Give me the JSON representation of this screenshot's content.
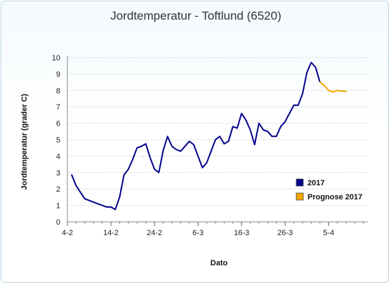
{
  "chart_data": {
    "type": "line",
    "title": "Jordtemperatur - Toftlund (6520)",
    "xlabel": "Dato",
    "ylabel": "Jordtemperatur (grader C)",
    "ylim": [
      0,
      10
    ],
    "yticks": [
      0,
      1,
      2,
      3,
      4,
      5,
      6,
      7,
      8,
      9,
      10
    ],
    "xlim": [
      "2017-02-04",
      "2017-04-14"
    ],
    "xtick_labels": [
      {
        "date": "2017-02-04",
        "label": "4-2"
      },
      {
        "date": "2017-02-14",
        "label": "14-2"
      },
      {
        "date": "2017-02-24",
        "label": "24-2"
      },
      {
        "date": "2017-03-06",
        "label": "6-3"
      },
      {
        "date": "2017-03-16",
        "label": "16-3"
      },
      {
        "date": "2017-03-26",
        "label": "26-3"
      },
      {
        "date": "2017-04-05",
        "label": "5-4"
      }
    ],
    "grid": "horizontal dotted",
    "legend_position": "right",
    "series": [
      {
        "name": "2017",
        "color": "#00008b",
        "x": [
          "2017-02-05",
          "2017-02-06",
          "2017-02-07",
          "2017-02-08",
          "2017-02-09",
          "2017-02-10",
          "2017-02-11",
          "2017-02-12",
          "2017-02-13",
          "2017-02-14",
          "2017-02-15",
          "2017-02-16",
          "2017-02-17",
          "2017-02-18",
          "2017-02-19",
          "2017-02-20",
          "2017-02-21",
          "2017-02-22",
          "2017-02-23",
          "2017-02-24",
          "2017-02-25",
          "2017-02-26",
          "2017-02-27",
          "2017-02-28",
          "2017-03-01",
          "2017-03-02",
          "2017-03-03",
          "2017-03-04",
          "2017-03-05",
          "2017-03-06",
          "2017-03-07",
          "2017-03-08",
          "2017-03-09",
          "2017-03-10",
          "2017-03-11",
          "2017-03-12",
          "2017-03-13",
          "2017-03-14",
          "2017-03-15",
          "2017-03-16",
          "2017-03-17",
          "2017-03-18",
          "2017-03-19",
          "2017-03-20",
          "2017-03-21",
          "2017-03-22",
          "2017-03-23",
          "2017-03-24",
          "2017-03-25",
          "2017-03-26",
          "2017-03-27",
          "2017-03-28",
          "2017-03-29",
          "2017-03-30",
          "2017-03-31",
          "2017-04-01",
          "2017-04-02",
          "2017-04-03"
        ],
        "y": [
          2.85,
          2.2,
          1.8,
          1.4,
          1.3,
          1.2,
          1.1,
          1.0,
          0.9,
          0.9,
          0.75,
          1.5,
          2.85,
          3.2,
          3.8,
          4.5,
          4.6,
          4.75,
          3.9,
          3.2,
          3.0,
          4.35,
          5.2,
          4.6,
          4.4,
          4.3,
          4.6,
          4.9,
          4.7,
          4.0,
          3.3,
          3.6,
          4.3,
          5.0,
          5.2,
          4.75,
          4.9,
          5.8,
          5.7,
          6.6,
          6.2,
          5.6,
          4.7,
          6.0,
          5.6,
          5.5,
          5.2,
          5.2,
          5.8,
          6.1,
          6.6,
          7.1,
          7.1,
          7.8,
          9.1,
          9.7,
          9.4,
          8.5
        ]
      },
      {
        "name": "Prognose 2017",
        "color": "#f5a800",
        "x": [
          "2017-04-03",
          "2017-04-04",
          "2017-04-05",
          "2017-04-06",
          "2017-04-07",
          "2017-04-08",
          "2017-04-09"
        ],
        "y": [
          8.5,
          8.3,
          8.0,
          7.9,
          8.0,
          7.95,
          7.95
        ]
      }
    ]
  }
}
